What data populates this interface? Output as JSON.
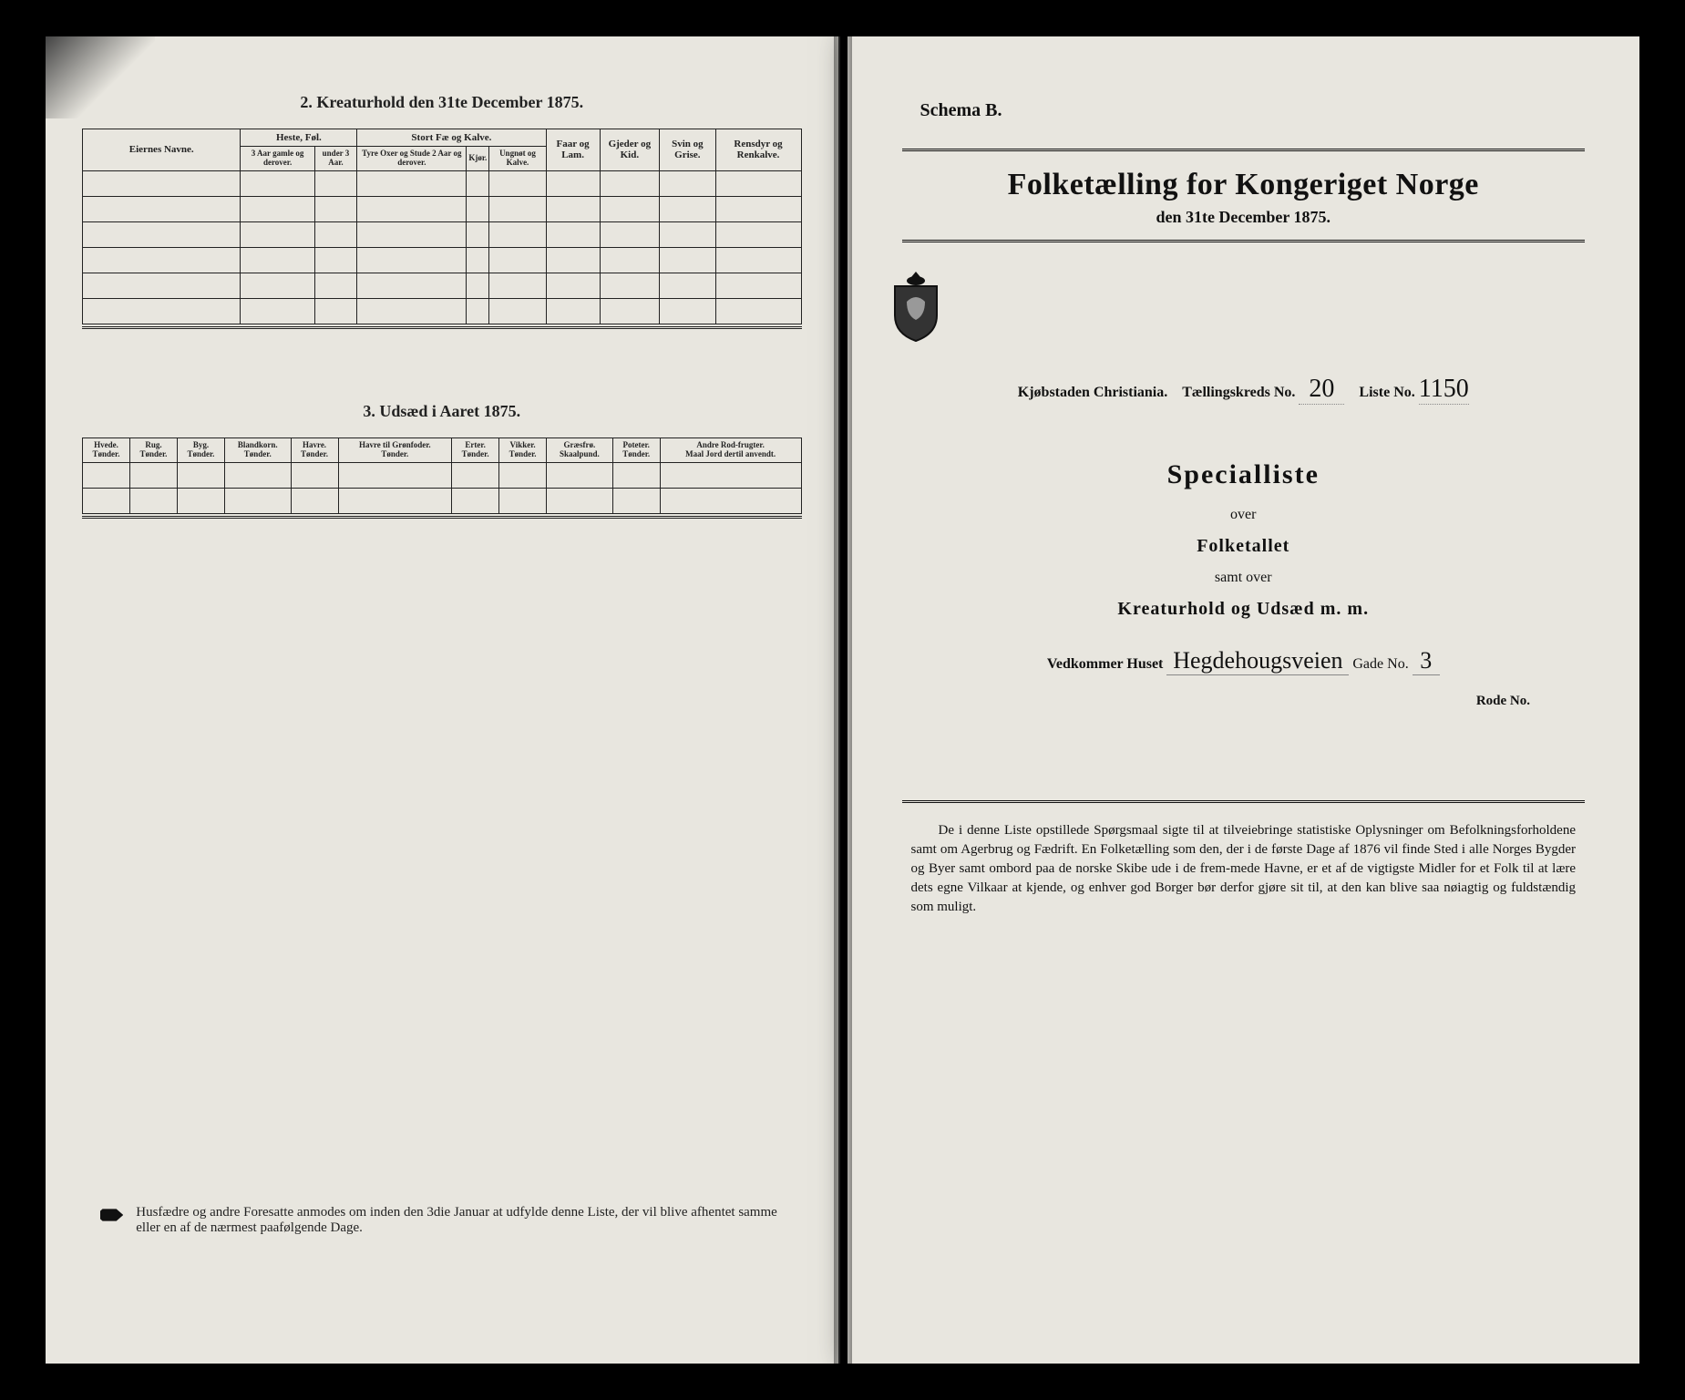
{
  "left": {
    "section2_title": "2. Kreaturhold den 31te December 1875.",
    "table2": {
      "owners_header": "Eiernes Navne.",
      "groups": {
        "heste": "Heste, Føl.",
        "stort": "Stort Fæ og Kalve.",
        "faar": "Faar og Lam.",
        "gjeder": "Gjeder og Kid.",
        "svin": "Svin og Grise.",
        "rensdyr": "Rensdyr og Renkalve."
      },
      "heste_sub": [
        "3 Aar gamle og derover.",
        "under 3 Aar."
      ],
      "stort_sub": [
        "Tyre Oxer og Stude 2 Aar og derover.",
        "Kjør.",
        "Ungnøt og Kalve."
      ]
    },
    "section3_title": "3. Udsæd i Aaret 1875.",
    "table3_headers": [
      "Hvede.\nTønder.",
      "Rug.\nTønder.",
      "Byg.\nTønder.",
      "Blandkorn.\nTønder.",
      "Havre.\nTønder.",
      "Havre til Grønfoder.\nTønder.",
      "Erter.\nTønder.",
      "Vikker.\nTønder.",
      "Græsfrø.\nSkaalpund.",
      "Poteter.\nTønder.",
      "Andre Rod-frugter.\nMaal Jord dertil anvendt."
    ],
    "footnote_text": "Husfædre og andre Foresatte anmodes om inden den 3die Januar at udfylde denne Liste, der vil blive afhentet samme eller en af de nærmest paafølgende Dage."
  },
  "right": {
    "schema": "Schema B.",
    "masthead_title": "Folketælling for Kongeriget Norge",
    "masthead_sub": "den 31te December 1875.",
    "meta_city": "Kjøbstaden Christiania.",
    "meta_kreds_label": "Tællingskreds No.",
    "meta_kreds_value": "20",
    "meta_liste_label": "Liste No.",
    "meta_liste_value": "1150",
    "special": "Specialliste",
    "over1": "over",
    "folketallet": "Folketallet",
    "samt_over": "samt over",
    "kreatur": "Kreaturhold og Udsæd m. m.",
    "house_label_left": "Vedkommer Huset",
    "house_value": "Hegdehougsveien",
    "house_label_right": "Gade No.",
    "house_no": "3",
    "rode_label": "Rode No.",
    "body_text": "De i denne Liste opstillede Spørgsmaal sigte til at tilveiebringe statistiske Oplysninger om Befolkningsforholdene samt om Agerbrug og Fædrift. En Folketælling som den, der i de første Dage af 1876 vil finde Sted i alle Norges Bygder og Byer samt ombord paa de norske Skibe ude i de frem-mede Havne, er et af de vigtigste Midler for et Folk til at lære dets egne Vilkaar at kjende, og enhver god Borger bør derfor gjøre sit til, at den kan blive saa nøiagtig og fuldstændig som muligt."
  },
  "colors": {
    "page_bg": "#e8e6df",
    "ink": "#111111",
    "outer": "#000000"
  }
}
